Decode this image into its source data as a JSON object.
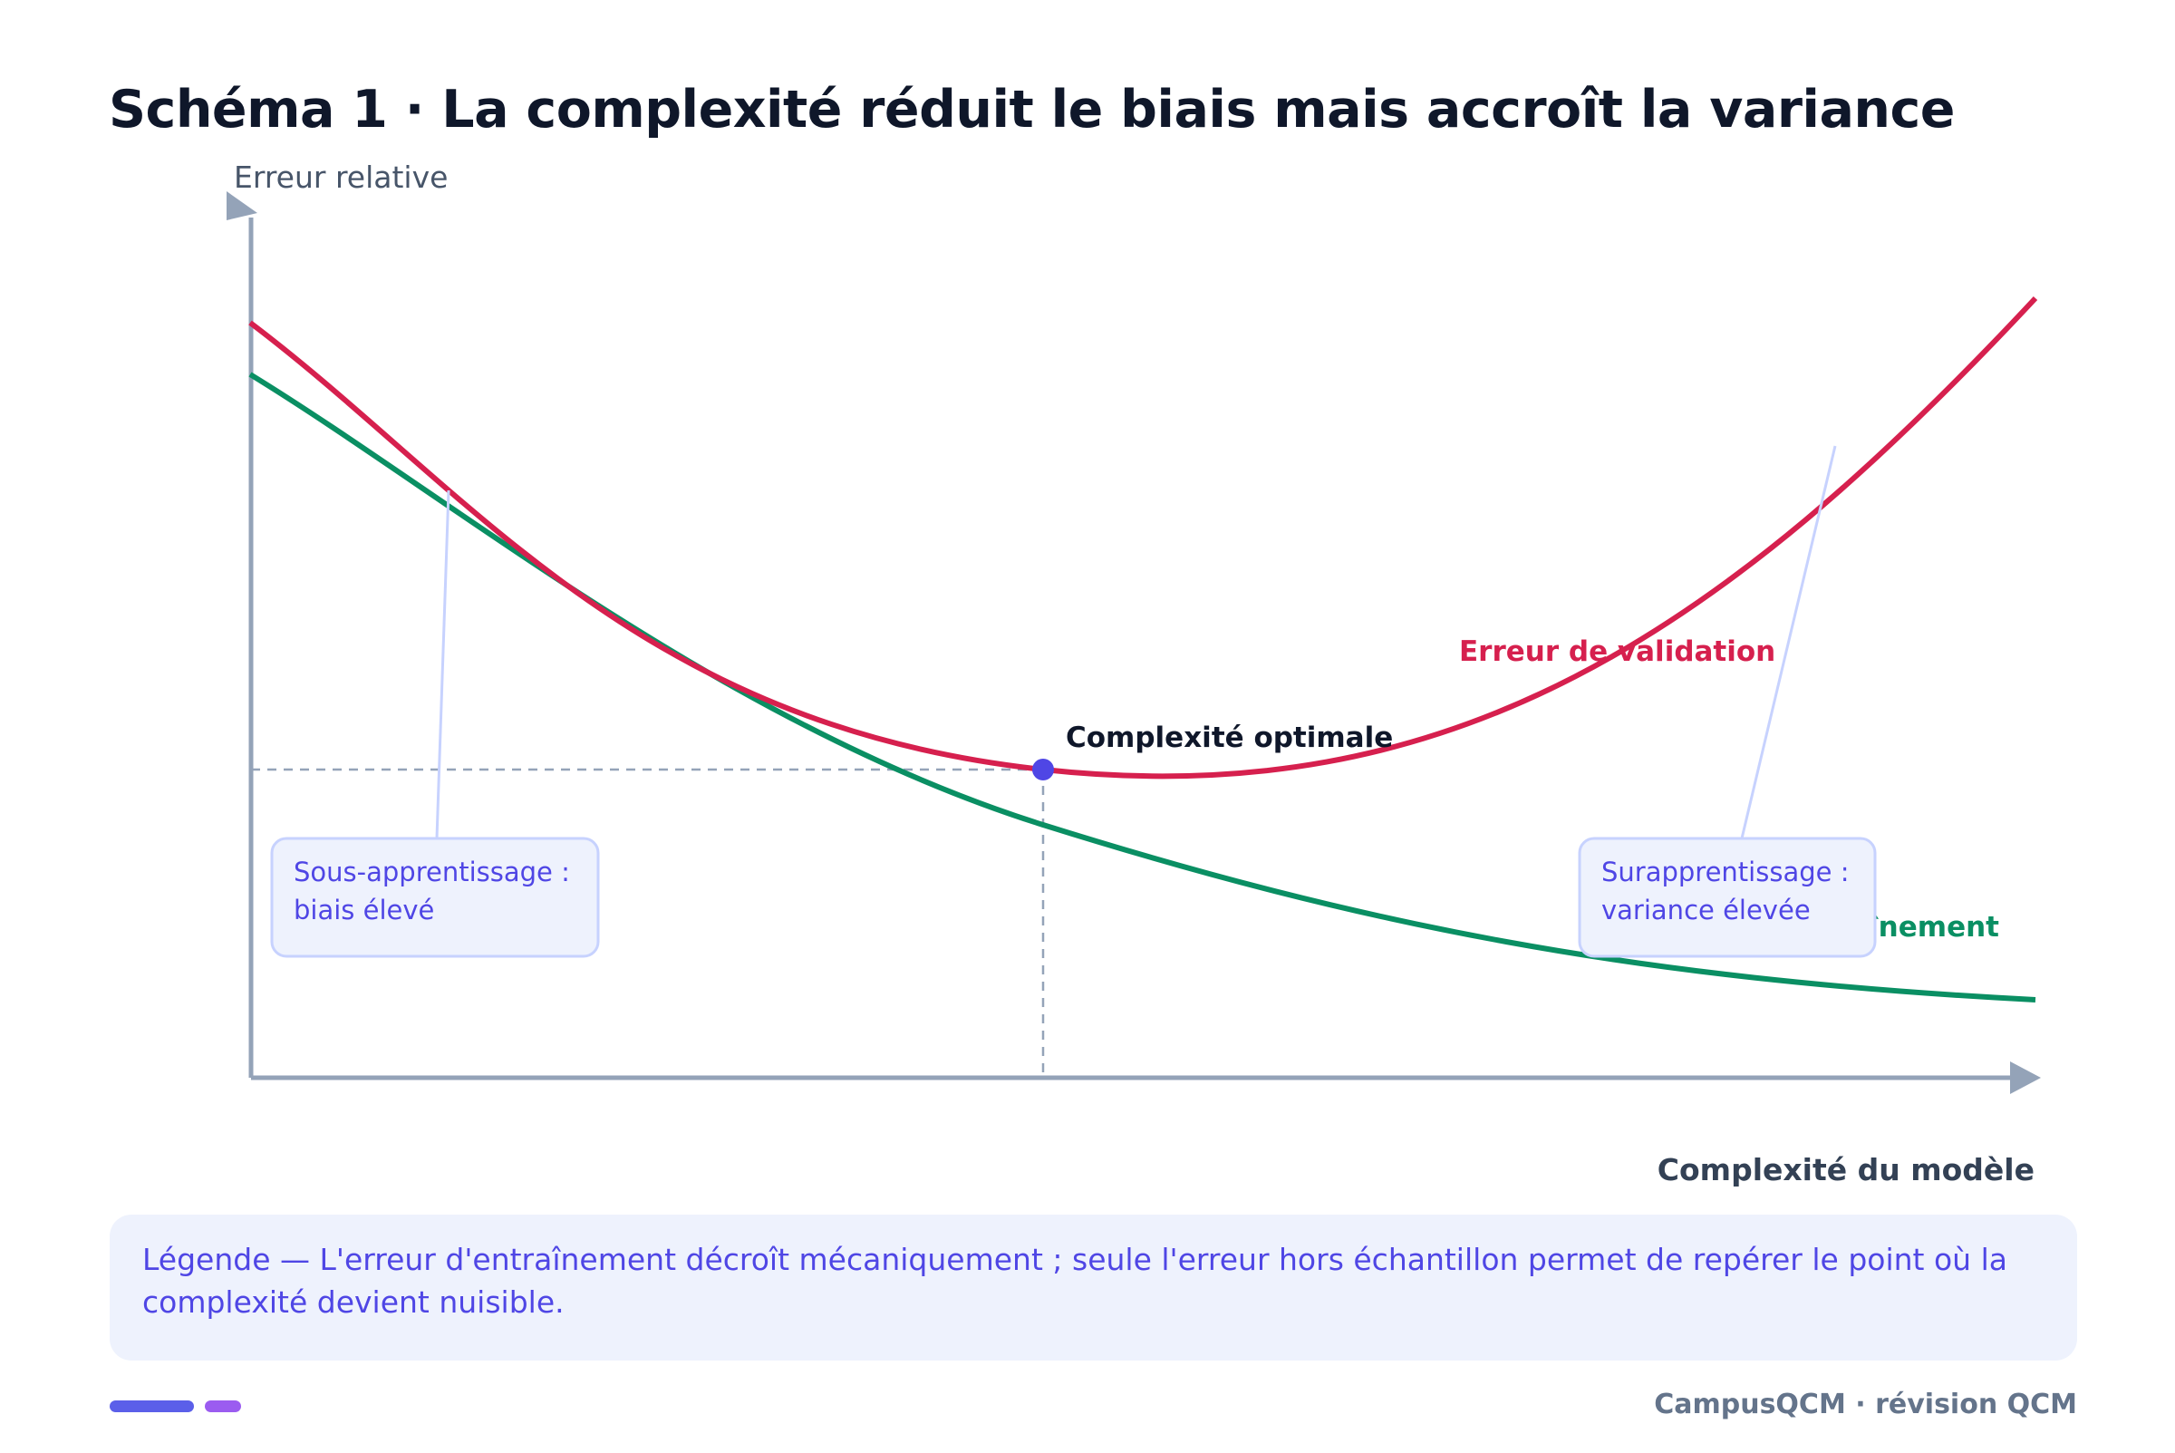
{
  "title": "Schéma 1 · La complexité réduit le biais mais accroît la variance",
  "axes": {
    "y_label": "Erreur relative",
    "x_label": "Complexité du modèle"
  },
  "curves": {
    "validation_label": "Erreur de validation",
    "training_label": "Erreur d'entraînement"
  },
  "optimum": {
    "label": "Complexité optimale"
  },
  "annotations": {
    "underfitting": [
      "Sous-apprentissage :",
      "biais élevé"
    ],
    "overfitting": [
      "Surapprentissage :",
      "variance élevée"
    ]
  },
  "legend": {
    "text": "Légende — L'erreur d'entraînement décroît mécaniquement ; seule l'erreur hors échantillon permet de repérer le point où la complexité devient nuisible."
  },
  "footer": {
    "brand": "CampusQCM · révision QCM"
  },
  "colors": {
    "validation": "#d6204e",
    "training": "#0a8f63",
    "optimum_dot": "#4f46e5",
    "axis": "#94a3b8",
    "annotation_text": "#4f46e5"
  }
}
